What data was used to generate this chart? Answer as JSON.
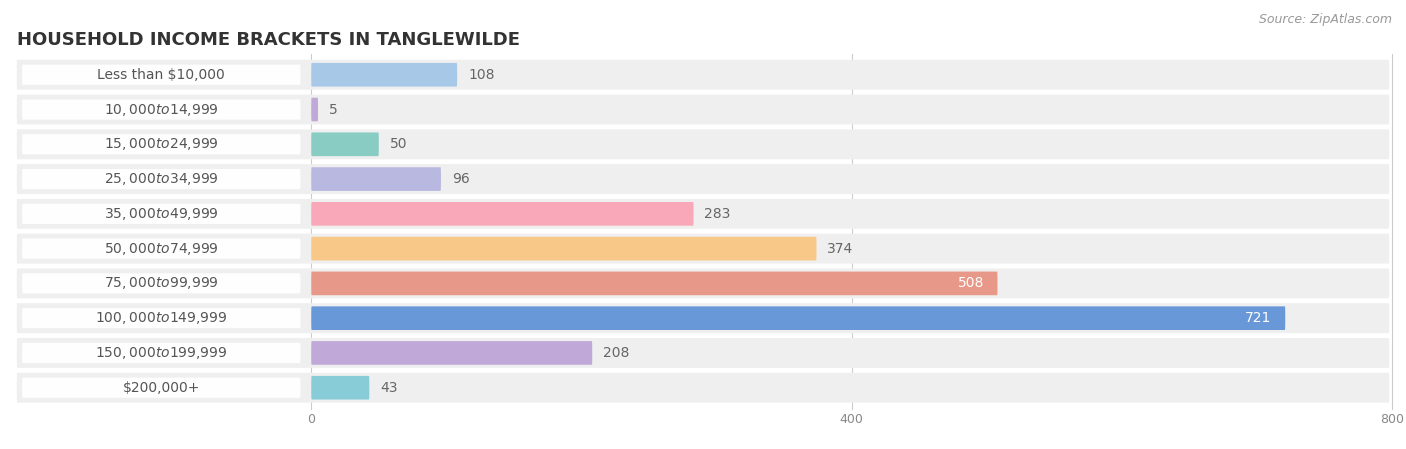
{
  "title": "HOUSEHOLD INCOME BRACKETS IN TANGLEWILDE",
  "source": "Source: ZipAtlas.com",
  "categories": [
    "Less than $10,000",
    "$10,000 to $14,999",
    "$15,000 to $24,999",
    "$25,000 to $34,999",
    "$35,000 to $49,999",
    "$50,000 to $74,999",
    "$75,000 to $99,999",
    "$100,000 to $149,999",
    "$150,000 to $199,999",
    "$200,000+"
  ],
  "values": [
    108,
    5,
    50,
    96,
    283,
    374,
    508,
    721,
    208,
    43
  ],
  "bar_colors": [
    "#a8c8e8",
    "#c0a8d8",
    "#88ccc4",
    "#b8b8e0",
    "#f8a8b8",
    "#f8c888",
    "#e89888",
    "#6898d8",
    "#c0a8d8",
    "#88ccd8"
  ],
  "xlim_left": -220,
  "xlim_right": 800,
  "xticks": [
    0,
    400,
    800
  ],
  "title_fontsize": 13,
  "label_fontsize": 10,
  "value_fontsize": 10,
  "source_fontsize": 9,
  "bar_height": 0.68,
  "row_bg_color": "#efefef",
  "label_pill_color": "#ffffff",
  "value_inside_color": "#ffffff",
  "value_outside_color": "#666666",
  "value_inside_threshold": 450,
  "title_color": "#333333",
  "source_color": "#999999",
  "tick_color": "#888888",
  "grid_color": "#cccccc"
}
